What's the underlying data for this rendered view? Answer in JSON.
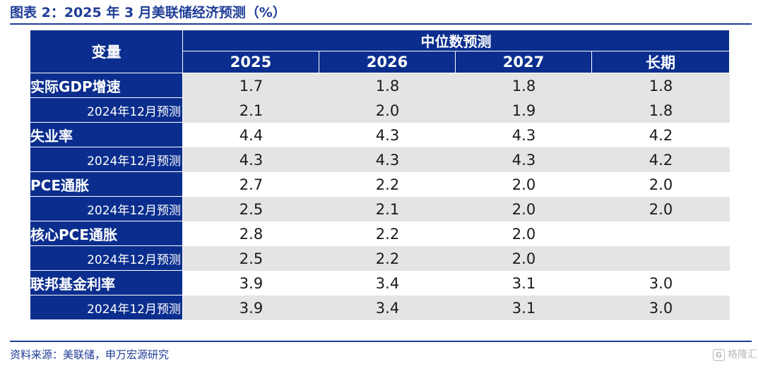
{
  "title": "图表 2：2025 年 3 月美联储经济预测（%）",
  "source": "资料来源：美联储，申万宏源研究",
  "watermark": {
    "icon": "G",
    "text": "格隆汇"
  },
  "table": {
    "variable_header": "变量",
    "group_header": "中位数预测",
    "columns": [
      "2025",
      "2026",
      "2027",
      "长期"
    ],
    "rows": [
      {
        "label": "实际GDP增速",
        "type": "main",
        "values": [
          "1.7",
          "1.8",
          "1.8",
          "1.8"
        ]
      },
      {
        "label": "2024年12月预测",
        "type": "sub",
        "values": [
          "2.1",
          "2.0",
          "1.9",
          "1.8"
        ]
      },
      {
        "label": "失业率",
        "type": "main",
        "values": [
          "4.4",
          "4.3",
          "4.3",
          "4.2"
        ]
      },
      {
        "label": "2024年12月预测",
        "type": "sub",
        "values": [
          "4.3",
          "4.3",
          "4.3",
          "4.2"
        ]
      },
      {
        "label": "PCE通胀",
        "type": "main",
        "values": [
          "2.7",
          "2.2",
          "2.0",
          "2.0"
        ]
      },
      {
        "label": "2024年12月预测",
        "type": "sub",
        "values": [
          "2.5",
          "2.1",
          "2.0",
          "2.0"
        ]
      },
      {
        "label": "核心PCE通胀",
        "type": "main",
        "values": [
          "2.8",
          "2.2",
          "2.0",
          ""
        ]
      },
      {
        "label": "2024年12月预测",
        "type": "sub",
        "values": [
          "2.5",
          "2.2",
          "2.0",
          ""
        ]
      },
      {
        "label": "联邦基金利率",
        "type": "main",
        "values": [
          "3.9",
          "3.4",
          "3.1",
          "3.0"
        ]
      },
      {
        "label": "2024年12月预测",
        "type": "sub",
        "values": [
          "3.9",
          "3.4",
          "3.1",
          "3.0"
        ]
      }
    ]
  },
  "colors": {
    "header_blue": "#0b2e8e",
    "title_blue": "#1e3c96",
    "row_shade": "#e4e4e4"
  }
}
